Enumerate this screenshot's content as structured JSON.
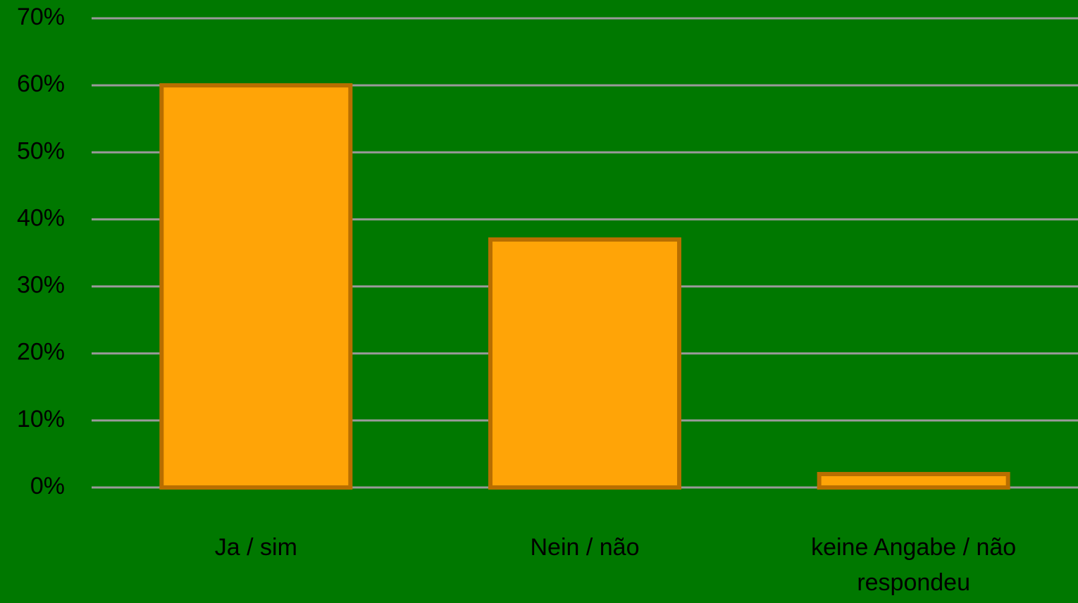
{
  "chart_data": {
    "type": "bar",
    "categories": [
      "Ja / sim",
      "Nein / não",
      "keine Angabe / não respondeu"
    ],
    "values": [
      60,
      37,
      2
    ],
    "color": "#ffa407",
    "ylim": [
      0,
      70
    ],
    "yticks": [
      {
        "value": 0,
        "label": "0%"
      },
      {
        "value": 10,
        "label": "10%"
      },
      {
        "value": 20,
        "label": "20%"
      },
      {
        "value": 30,
        "label": "30%"
      },
      {
        "value": 40,
        "label": "40%"
      },
      {
        "value": 50,
        "label": "50%"
      },
      {
        "value": 60,
        "label": "60%"
      },
      {
        "value": 70,
        "label": "70%"
      }
    ],
    "grid": true
  }
}
